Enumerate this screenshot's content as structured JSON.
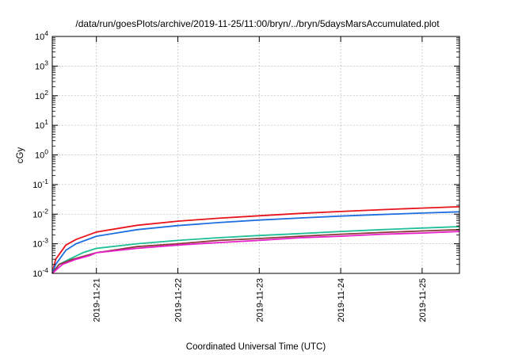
{
  "chart_data": {
    "type": "line",
    "title": "/data/run/goesPlots/archive/2019-11-25/11:00/bryn/../bryn/5daysMarsAccumulated.plot",
    "xlabel": "Coordinated Universal Time (UTC)",
    "ylabel": "cGy",
    "y_scale": "log",
    "ylim": [
      0.0001,
      10000
    ],
    "y_ticks": [
      {
        "value": 0.0001,
        "base": "10",
        "exp": "-4"
      },
      {
        "value": 0.001,
        "base": "10",
        "exp": "-3"
      },
      {
        "value": 0.01,
        "base": "10",
        "exp": "-2"
      },
      {
        "value": 0.1,
        "base": "10",
        "exp": "-1"
      },
      {
        "value": 1,
        "base": "10",
        "exp": "0"
      },
      {
        "value": 10,
        "base": "10",
        "exp": "1"
      },
      {
        "value": 100,
        "base": "10",
        "exp": "2"
      },
      {
        "value": 1000,
        "base": "10",
        "exp": "3"
      },
      {
        "value": 10000,
        "base": "10",
        "exp": "4"
      }
    ],
    "xlim": [
      "2019-11-20 11:00",
      "2019-11-25 11:00"
    ],
    "x_ticks": [
      "2019-11-21",
      "2019-11-22",
      "2019-11-23",
      "2019-11-24",
      "2019-11-25"
    ],
    "grid": true,
    "series": [
      {
        "color": "#e8141c",
        "points": [
          [
            "2019-11-20 11:00",
            0.0001
          ],
          [
            "2019-11-20 12:00",
            0.0003
          ],
          [
            "2019-11-20 15:00",
            0.0009
          ],
          [
            "2019-11-20 18:00",
            0.0014
          ],
          [
            "2019-11-21 00:00",
            0.0025
          ],
          [
            "2019-11-21 12:00",
            0.0042
          ],
          [
            "2019-11-22 00:00",
            0.0058
          ],
          [
            "2019-11-22 12:00",
            0.0073
          ],
          [
            "2019-11-23 00:00",
            0.0088
          ],
          [
            "2019-11-23 12:00",
            0.0106
          ],
          [
            "2019-11-24 00:00",
            0.0123
          ],
          [
            "2019-11-24 12:00",
            0.0142
          ],
          [
            "2019-11-25 00:00",
            0.016
          ],
          [
            "2019-11-25 11:00",
            0.0178
          ]
        ]
      },
      {
        "color": "#1f6fe0",
        "points": [
          [
            "2019-11-20 11:00",
            0.0001
          ],
          [
            "2019-11-20 12:00",
            0.0002
          ],
          [
            "2019-11-20 15:00",
            0.0006
          ],
          [
            "2019-11-20 18:00",
            0.001
          ],
          [
            "2019-11-21 00:00",
            0.0018
          ],
          [
            "2019-11-21 12:00",
            0.003
          ],
          [
            "2019-11-22 00:00",
            0.0041
          ],
          [
            "2019-11-22 12:00",
            0.0052
          ],
          [
            "2019-11-23 00:00",
            0.0063
          ],
          [
            "2019-11-23 12:00",
            0.0074
          ],
          [
            "2019-11-24 00:00",
            0.0086
          ],
          [
            "2019-11-24 12:00",
            0.0097
          ],
          [
            "2019-11-25 00:00",
            0.0109
          ],
          [
            "2019-11-25 11:00",
            0.012
          ]
        ]
      },
      {
        "color": "#1fbf98",
        "points": [
          [
            "2019-11-20 11:00",
            0.0001
          ],
          [
            "2019-11-20 13:00",
            0.0002
          ],
          [
            "2019-11-20 16:00",
            0.0003
          ],
          [
            "2019-11-20 20:00",
            0.0005
          ],
          [
            "2019-11-21 00:00",
            0.0007
          ],
          [
            "2019-11-21 12:00",
            0.001
          ],
          [
            "2019-11-22 00:00",
            0.0013
          ],
          [
            "2019-11-22 12:00",
            0.0016
          ],
          [
            "2019-11-23 00:00",
            0.0019
          ],
          [
            "2019-11-23 12:00",
            0.0022
          ],
          [
            "2019-11-24 00:00",
            0.0026
          ],
          [
            "2019-11-24 12:00",
            0.003
          ],
          [
            "2019-11-25 00:00",
            0.0034
          ],
          [
            "2019-11-25 11:00",
            0.0038
          ]
        ]
      },
      {
        "color": "#8b3a3a",
        "points": [
          [
            "2019-11-20 11:00",
            0.0001
          ],
          [
            "2019-11-20 13:00",
            0.0002
          ],
          [
            "2019-11-20 17:00",
            0.0003
          ],
          [
            "2019-11-20 21:00",
            0.0004
          ],
          [
            "2019-11-21 00:00",
            0.0005
          ],
          [
            "2019-11-21 12:00",
            0.0008
          ],
          [
            "2019-11-22 00:00",
            0.001
          ],
          [
            "2019-11-22 12:00",
            0.0013
          ],
          [
            "2019-11-23 00:00",
            0.0015
          ],
          [
            "2019-11-23 12:00",
            0.0018
          ],
          [
            "2019-11-24 00:00",
            0.0021
          ],
          [
            "2019-11-24 12:00",
            0.0024
          ],
          [
            "2019-11-25 00:00",
            0.0027
          ],
          [
            "2019-11-25 11:00",
            0.003
          ]
        ]
      },
      {
        "color": "#e81ec8",
        "points": [
          [
            "2019-11-20 11:00",
            0.0001
          ],
          [
            "2019-11-20 14:00",
            0.0002
          ],
          [
            "2019-11-20 18:00",
            0.0003
          ],
          [
            "2019-11-20 22:00",
            0.0004
          ],
          [
            "2019-11-21 00:00",
            0.0005
          ],
          [
            "2019-11-21 12:00",
            0.0007
          ],
          [
            "2019-11-22 00:00",
            0.0009
          ],
          [
            "2019-11-22 12:00",
            0.0011
          ],
          [
            "2019-11-23 00:00",
            0.0013
          ],
          [
            "2019-11-23 12:00",
            0.0016
          ],
          [
            "2019-11-24 00:00",
            0.0018
          ],
          [
            "2019-11-24 12:00",
            0.0021
          ],
          [
            "2019-11-25 00:00",
            0.0023
          ],
          [
            "2019-11-25 11:00",
            0.0026
          ]
        ]
      }
    ]
  }
}
